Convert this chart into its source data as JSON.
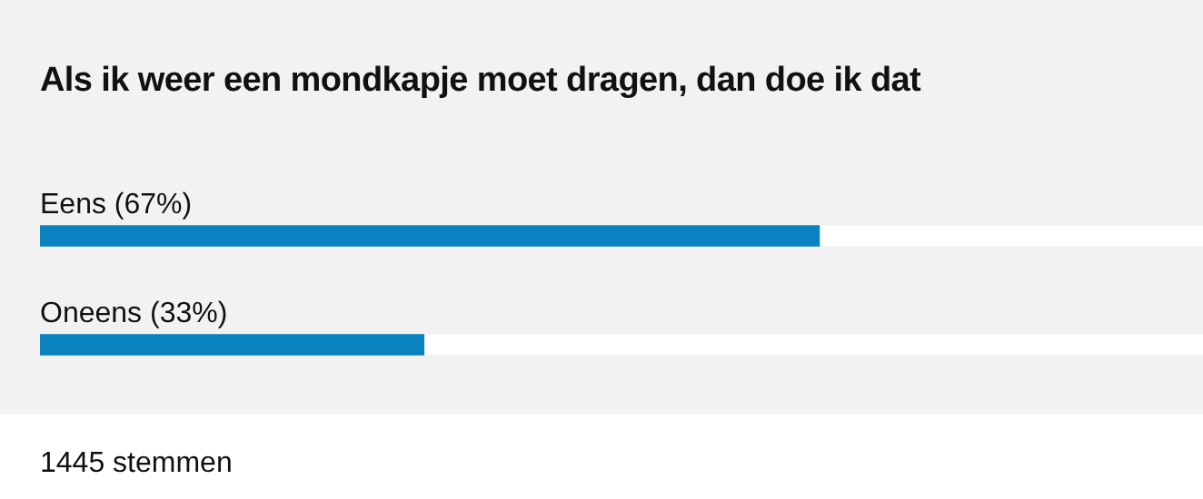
{
  "chart_data": {
    "type": "bar",
    "orientation": "horizontal",
    "title": "Als ik weer een mondkapje moet dragen, dan doe ik dat",
    "categories": [
      "Eens",
      "Oneens"
    ],
    "values": [
      67,
      33
    ],
    "value_labels": [
      "(67%)",
      "(33%)"
    ],
    "color": "#0a82c0",
    "annotations": [
      "1445 stemmen"
    ]
  }
}
